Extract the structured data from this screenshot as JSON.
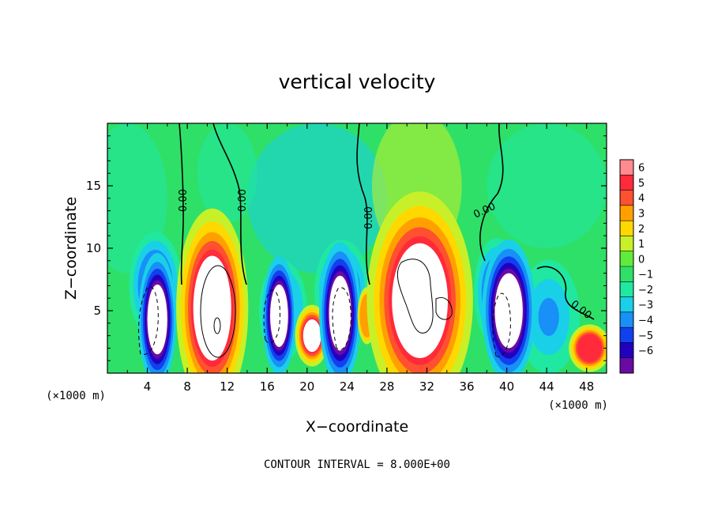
{
  "chart_data": {
    "type": "heatmap",
    "title": "vertical velocity",
    "xlabel": "X−coordinate",
    "ylabel": "Z−coordinate",
    "x_units_left": "(×1000 m)",
    "x_units_right": "(×1000 m)",
    "xlim": [
      0,
      50
    ],
    "ylim": [
      0,
      20
    ],
    "x_ticks": [
      4,
      8,
      12,
      16,
      20,
      24,
      28,
      32,
      36,
      40,
      44,
      48
    ],
    "y_ticks": [
      5,
      10,
      15
    ],
    "footer": "CONTOUR INTERVAL = 8.000E+00",
    "colorbar": {
      "levels": [
        6,
        5,
        4,
        3,
        2,
        1,
        0,
        -1,
        -2,
        -3,
        -4,
        -5,
        -6
      ],
      "labels": [
        "6",
        "5",
        "4",
        "3",
        "2",
        "1",
        "0",
        "−1",
        "−2",
        "−3",
        "−4",
        "−5",
        "−6"
      ]
    },
    "contour_labels": [
      "0.00",
      "0.00",
      "0.00",
      "0.00",
      "0.00"
    ],
    "updrafts": [
      {
        "x": 5.0,
        "z": 4.3,
        "sx": 1.0,
        "sz": 2.8,
        "w": -8
      },
      {
        "x": 10.5,
        "z": 5.2,
        "sx": 1.9,
        "sz": 4.2,
        "w": 9
      },
      {
        "x": 17.2,
        "z": 4.6,
        "sx": 0.9,
        "sz": 2.5,
        "w": -8
      },
      {
        "x": 20.5,
        "z": 3.0,
        "sx": 0.9,
        "sz": 1.3,
        "w": 8
      },
      {
        "x": 23.3,
        "z": 4.8,
        "sx": 1.1,
        "sz": 3.0,
        "w": -8
      },
      {
        "x": 26.0,
        "z": 4.6,
        "sx": 0.5,
        "sz": 1.2,
        "w": 4
      },
      {
        "x": 31.3,
        "z": 5.8,
        "sx": 2.8,
        "sz": 4.6,
        "w": 9
      },
      {
        "x": 40.2,
        "z": 5.0,
        "sx": 1.4,
        "sz": 3.0,
        "w": -8
      },
      {
        "x": 48.3,
        "z": 2.0,
        "sx": 1.1,
        "sz": 1.0,
        "w": 6
      }
    ],
    "downdrafts": [
      {
        "x": 4.8,
        "z": 7.0,
        "sx": 2.2,
        "sz": 3.6,
        "w": -5
      },
      {
        "x": 17.6,
        "z": 5.0,
        "sx": 2.0,
        "sz": 3.3,
        "w": -4
      },
      {
        "x": 23.5,
        "z": 6.6,
        "sx": 2.3,
        "sz": 3.4,
        "w": -5
      },
      {
        "x": 39.0,
        "z": 6.5,
        "sx": 1.9,
        "sz": 3.6,
        "w": -5
      },
      {
        "x": 44.2,
        "z": 4.5,
        "sx": 2.6,
        "sz": 3.8,
        "w": -3
      }
    ]
  }
}
